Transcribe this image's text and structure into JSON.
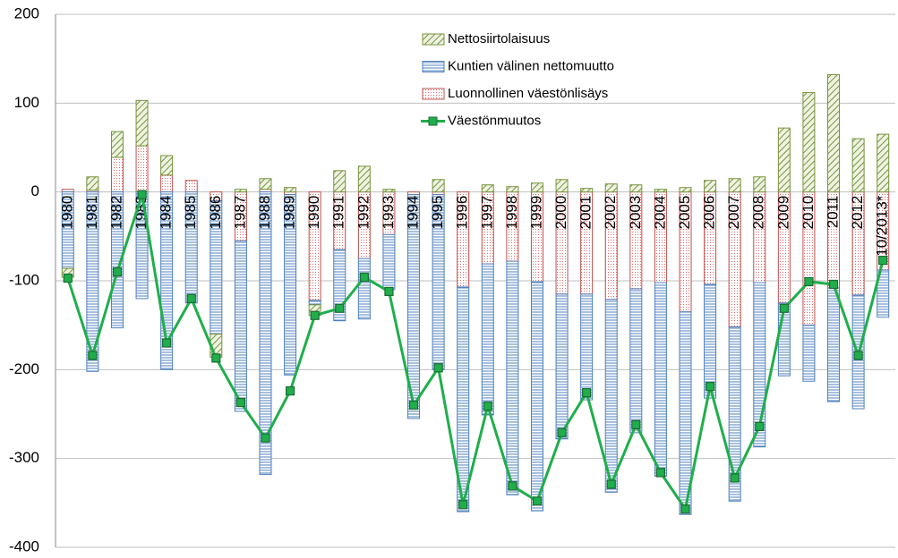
{
  "chart_data": {
    "type": "bar",
    "stacked": true,
    "categories": [
      "1980",
      "1981",
      "1982",
      "1983",
      "1984",
      "1985",
      "1986",
      "1987",
      "1988",
      "1989",
      "1990",
      "1991",
      "1992",
      "1993",
      "1994",
      "1995",
      "1996",
      "1997",
      "1998",
      "1999",
      "2000",
      "2001",
      "2002",
      "2003",
      "2004",
      "2005",
      "2006",
      "2007",
      "2008",
      "2009",
      "2010",
      "2011",
      "2012",
      "10/2013*"
    ],
    "series": [
      {
        "name": "Luonnollinen väestönlisäys",
        "color": "#c0504d",
        "pattern": "dots",
        "values": [
          3,
          2,
          39,
          52,
          19,
          13,
          -10,
          -55,
          3,
          -3,
          -122,
          -65,
          -75,
          -48,
          -3,
          -3,
          -107,
          -81,
          -78,
          -101,
          -115,
          -115,
          -121,
          -109,
          -102,
          -135,
          -104,
          -152,
          -102,
          -125,
          -150,
          -108,
          -116,
          -88
        ]
      },
      {
        "name": "Kuntien välinen nettomuutto",
        "color": "#4f81bd",
        "pattern": "stripes",
        "values": [
          -86,
          -202,
          -153,
          -120,
          -200,
          -125,
          -150,
          -192,
          -318,
          -203,
          -5,
          -80,
          -68,
          -62,
          -252,
          -197,
          -253,
          -170,
          -263,
          -258,
          -163,
          -119,
          -217,
          -162,
          -218,
          -228,
          -128,
          -196,
          -185,
          -82,
          -63,
          -128,
          -128,
          -53
        ]
      },
      {
        "name": "Nettosiirtolaisuus",
        "color": "#77933c",
        "pattern": "hatch",
        "values": [
          -10,
          15,
          29,
          51,
          22,
          0,
          -26,
          3,
          12,
          5,
          -12,
          24,
          29,
          3,
          0,
          14,
          0,
          8,
          6,
          10,
          14,
          4,
          9,
          8,
          3,
          5,
          13,
          15,
          17,
          72,
          112,
          132,
          60,
          65
        ]
      },
      {
        "name": "Väestönmuutos",
        "color": "#1fae4b",
        "type": "line",
        "values": [
          -97,
          -184,
          -90,
          -3,
          -170,
          -120,
          -187,
          -237,
          -277,
          -224,
          -139,
          -131,
          -96,
          -112,
          -240,
          -198,
          -352,
          -241,
          -331,
          -348,
          -271,
          -226,
          -329,
          -262,
          -316,
          -357,
          -219,
          -322,
          -264,
          -131,
          -101,
          -104,
          -184,
          -77
        ]
      }
    ],
    "ylim": [
      -400,
      200
    ],
    "yticks": [
      -400,
      -300,
      -200,
      -100,
      0,
      100,
      200
    ],
    "grid": true,
    "legend": "top-center"
  }
}
